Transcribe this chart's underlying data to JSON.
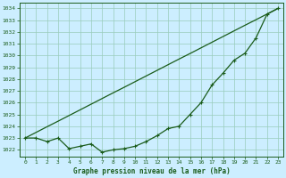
{
  "title": "Graphe pression niveau de la mer (hPa)",
  "background_color": "#cceeff",
  "line_color": "#1a5c1a",
  "grid_color": "#99ccbb",
  "x_values": [
    0,
    1,
    2,
    3,
    4,
    5,
    6,
    7,
    8,
    9,
    10,
    11,
    12,
    13,
    14,
    15,
    16,
    17,
    18,
    19,
    20,
    21,
    22,
    23
  ],
  "y_actual": [
    1023.0,
    1023.0,
    1022.7,
    1023.0,
    1022.1,
    1022.3,
    1022.5,
    1021.8,
    1022.0,
    1022.1,
    1022.3,
    1022.7,
    1023.2,
    1023.8,
    1024.0,
    1025.0,
    1026.0,
    1027.5,
    1028.5,
    1029.6,
    1030.2,
    1031.5,
    1033.5,
    1034.0
  ],
  "y_linear": [
    1023.0,
    1023.48,
    1023.96,
    1024.43,
    1024.91,
    1025.39,
    1025.87,
    1026.35,
    1026.83,
    1027.3,
    1027.78,
    1028.26,
    1028.74,
    1029.22,
    1029.7,
    1030.17,
    1030.65,
    1031.13,
    1031.61,
    1032.09,
    1032.57,
    1033.04,
    1033.52,
    1034.0
  ],
  "ylim_min": 1021.4,
  "ylim_max": 1034.5,
  "yticks": [
    1022,
    1023,
    1024,
    1025,
    1026,
    1027,
    1028,
    1029,
    1030,
    1031,
    1032,
    1033,
    1034
  ],
  "xlim_min": -0.5,
  "xlim_max": 23.5,
  "figwidth": 3.2,
  "figheight": 2.0,
  "dpi": 100
}
